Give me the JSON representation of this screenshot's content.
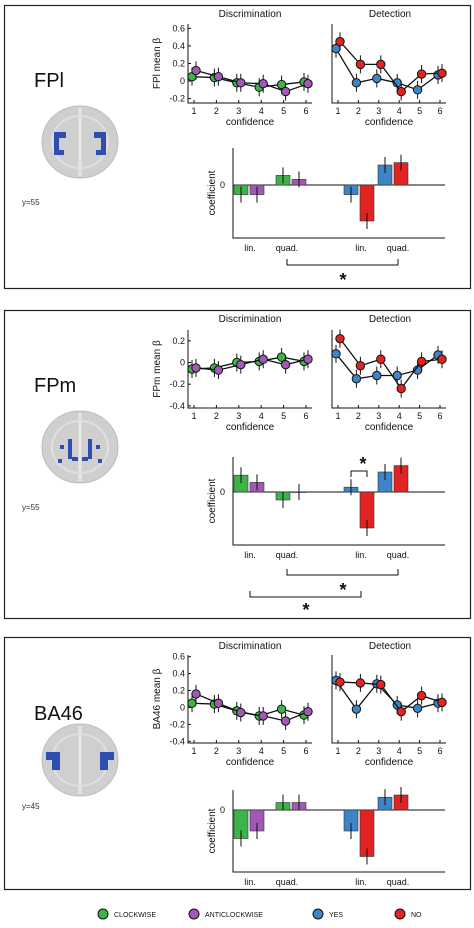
{
  "colors": {
    "clockwise": "#3cb44b",
    "anticlockwise": "#a05ab4",
    "yes": "#3d85c6",
    "no": "#e02424",
    "brain": "#cfcfcf",
    "roi": "#2f4fb0"
  },
  "titles": {
    "discrimination": "Discrimination",
    "detection": "Detection"
  },
  "labels": {
    "confidence": "confidence",
    "coefficient": "coefficient",
    "lin": "lin.",
    "quad": "quad.",
    "star": "*"
  },
  "legend": [
    {
      "name": "CLOCKWISE",
      "color": "#3cb44b"
    },
    {
      "name": "ANTICLOCKWISE",
      "color": "#a05ab4"
    },
    {
      "name": "YES",
      "color": "#3d85c6"
    },
    {
      "name": "NO",
      "color": "#e02424"
    }
  ],
  "chart_data": [
    {
      "region": "FPl",
      "coordinate": "y=55",
      "line": {
        "type": "line",
        "ylabel": "FPl mean β",
        "yticks": [
          -0.2,
          0,
          0.2,
          0.4,
          0.6
        ],
        "ylim": [
          -0.25,
          0.65
        ],
        "discrimination": [
          {
            "name": "CLOCKWISE",
            "values": [
              0.05,
              0.04,
              -0.02,
              -0.07,
              -0.04,
              -0.01
            ]
          },
          {
            "name": "ANTICLOCKWISE",
            "values": [
              0.12,
              0.05,
              -0.02,
              -0.03,
              -0.12,
              -0.03
            ]
          }
        ],
        "detection": [
          {
            "name": "YES",
            "values": [
              0.37,
              -0.02,
              0.03,
              -0.02,
              -0.1,
              0.07
            ]
          },
          {
            "name": "NO",
            "values": [
              0.45,
              0.19,
              0.19,
              -0.12,
              0.08,
              0.09
            ]
          }
        ]
      },
      "bars": {
        "type": "bar",
        "discrimination": {
          "lin": [
            -0.12,
            -0.12
          ],
          "quad": [
            0.12,
            0.07
          ]
        },
        "detection": {
          "lin": [
            -0.12,
            -0.45
          ],
          "quad": [
            0.25,
            0.28
          ]
        },
        "significance": [
          {
            "label": "*",
            "between": [
              "discrimination quad.",
              "detection quad."
            ]
          }
        ]
      }
    },
    {
      "region": "FPm",
      "coordinate": "y=55",
      "line": {
        "type": "line",
        "ylabel": "FPm mean β",
        "yticks": [
          -0.4,
          -0.2,
          0,
          0.2
        ],
        "ylim": [
          -0.42,
          0.3
        ],
        "discrimination": [
          {
            "name": "CLOCKWISE",
            "values": [
              -0.06,
              -0.05,
              0.0,
              0.01,
              0.05,
              0.01
            ]
          },
          {
            "name": "ANTICLOCKWISE",
            "values": [
              -0.05,
              -0.07,
              -0.02,
              0.03,
              -0.02,
              0.03
            ]
          }
        ],
        "detection": [
          {
            "name": "YES",
            "values": [
              0.08,
              -0.15,
              -0.12,
              -0.12,
              -0.07,
              0.07
            ]
          },
          {
            "name": "NO",
            "values": [
              0.22,
              -0.03,
              0.03,
              -0.24,
              0.01,
              0.03
            ]
          }
        ]
      },
      "bars": {
        "type": "bar",
        "discrimination": {
          "lin": [
            0.21,
            0.12
          ],
          "quad": [
            -0.1,
            0.0
          ]
        },
        "detection": {
          "lin": [
            0.06,
            -0.45
          ],
          "quad": [
            0.25,
            0.33
          ]
        },
        "significance": [
          {
            "label": "*",
            "between": [
              "detection lin. YES",
              "detection lin. NO"
            ]
          },
          {
            "label": "*",
            "between": [
              "discrimination quad.",
              "detection quad."
            ]
          },
          {
            "label": "*",
            "between": [
              "discrimination lin.",
              "detection lin."
            ]
          }
        ]
      }
    },
    {
      "region": "BA46",
      "coordinate": "y=45",
      "line": {
        "type": "line",
        "ylabel": "BA46 mean β",
        "yticks": [
          -0.4,
          -0.2,
          0,
          0.2,
          0.4,
          0.6
        ],
        "ylim": [
          -0.42,
          0.62
        ],
        "discrimination": [
          {
            "name": "CLOCKWISE",
            "values": [
              0.05,
              0.04,
              -0.04,
              -0.1,
              -0.02,
              -0.09
            ]
          },
          {
            "name": "ANTICLOCKWISE",
            "values": [
              0.16,
              0.05,
              -0.06,
              -0.1,
              -0.16,
              -0.05
            ]
          }
        ],
        "detection": [
          {
            "name": "YES",
            "values": [
              0.32,
              -0.02,
              0.28,
              0.03,
              -0.01,
              0.05
            ]
          },
          {
            "name": "NO",
            "values": [
              0.3,
              0.29,
              0.27,
              -0.05,
              0.14,
              0.06
            ]
          }
        ]
      },
      "bars": {
        "type": "bar",
        "discrimination": {
          "lin": [
            -0.38,
            -0.28
          ],
          "quad": [
            0.1,
            0.1
          ]
        },
        "detection": {
          "lin": [
            -0.28,
            -0.62
          ],
          "quad": [
            0.17,
            0.2
          ]
        },
        "significance": []
      }
    }
  ]
}
